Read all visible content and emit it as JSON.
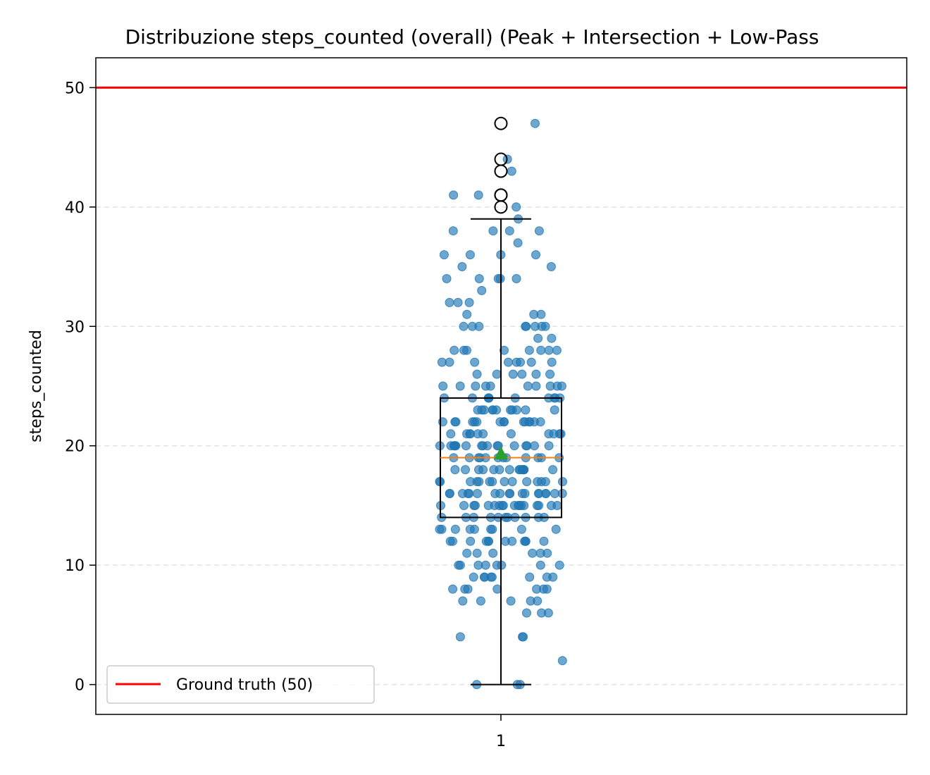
{
  "chart_data": {
    "type": "box",
    "title": "Distribuzione steps_counted (overall) (Peak + Intersection + Low-Pass",
    "xlabel": "",
    "ylabel": "steps_counted",
    "x_categories": [
      "1"
    ],
    "ylim": [
      -2.5,
      52.5
    ],
    "yticks": [
      0,
      10,
      20,
      30,
      40,
      50
    ],
    "grid": "y, dashed, light gray",
    "box": {
      "q1": 14,
      "median": 19,
      "q3": 24,
      "mean": 19.3,
      "whisker_low": 0,
      "whisker_high": 39,
      "outliers": [
        40,
        41,
        41,
        43,
        44,
        47
      ]
    },
    "reference_line": {
      "name": "Ground truth (50)",
      "value": 50,
      "color": "#ff0000"
    },
    "legend": {
      "placement": "lower-left",
      "entries": [
        "Ground truth (50)"
      ]
    },
    "points": {
      "color": "#1f77b4",
      "values": [
        0,
        0,
        0,
        2,
        4,
        4,
        4,
        6,
        6,
        6,
        7,
        7,
        7,
        7,
        7,
        8,
        8,
        8,
        8,
        8,
        8,
        8,
        9,
        9,
        9,
        9,
        9,
        9,
        9,
        9,
        10,
        10,
        10,
        10,
        10,
        10,
        10,
        10,
        11,
        11,
        11,
        11,
        11,
        11,
        12,
        12,
        12,
        12,
        12,
        12,
        12,
        12,
        12,
        12,
        12,
        12,
        13,
        13,
        13,
        13,
        13,
        13,
        13,
        13,
        13,
        14,
        14,
        14,
        14,
        14,
        14,
        14,
        14,
        14,
        14,
        14,
        15,
        15,
        15,
        15,
        15,
        15,
        15,
        15,
        15,
        15,
        15,
        15,
        15,
        15,
        15,
        15,
        15,
        15,
        16,
        16,
        16,
        16,
        16,
        16,
        16,
        16,
        16,
        16,
        16,
        16,
        16,
        16,
        16,
        16,
        16,
        16,
        17,
        17,
        17,
        17,
        17,
        17,
        17,
        17,
        17,
        17,
        17,
        17,
        17,
        17,
        18,
        18,
        18,
        18,
        18,
        18,
        18,
        18,
        18,
        18,
        18,
        18,
        18,
        18,
        18,
        19,
        19,
        19,
        19,
        19,
        19,
        19,
        19,
        19,
        19,
        19,
        19,
        20,
        20,
        20,
        20,
        20,
        20,
        20,
        20,
        20,
        20,
        20,
        20,
        20,
        20,
        20,
        20,
        20,
        21,
        21,
        21,
        21,
        21,
        21,
        21,
        21,
        21,
        21,
        21,
        22,
        22,
        22,
        22,
        22,
        22,
        22,
        22,
        22,
        22,
        22,
        22,
        22,
        22,
        22,
        23,
        23,
        23,
        23,
        23,
        23,
        23,
        23,
        23,
        23,
        23,
        24,
        24,
        24,
        24,
        24,
        24,
        24,
        24,
        24,
        24,
        25,
        25,
        25,
        25,
        25,
        25,
        25,
        25,
        25,
        25,
        26,
        26,
        26,
        26,
        26,
        26,
        27,
        27,
        27,
        27,
        27,
        27,
        27,
        27,
        28,
        28,
        28,
        28,
        28,
        28,
        28,
        28,
        29,
        29,
        30,
        30,
        30,
        30,
        30,
        30,
        30,
        30,
        31,
        31,
        31,
        32,
        32,
        32,
        33,
        34,
        34,
        34,
        34,
        34,
        35,
        35,
        36,
        36,
        36,
        36,
        37,
        38,
        38,
        38,
        38,
        39,
        40,
        41,
        41,
        43,
        44,
        47
      ]
    }
  }
}
